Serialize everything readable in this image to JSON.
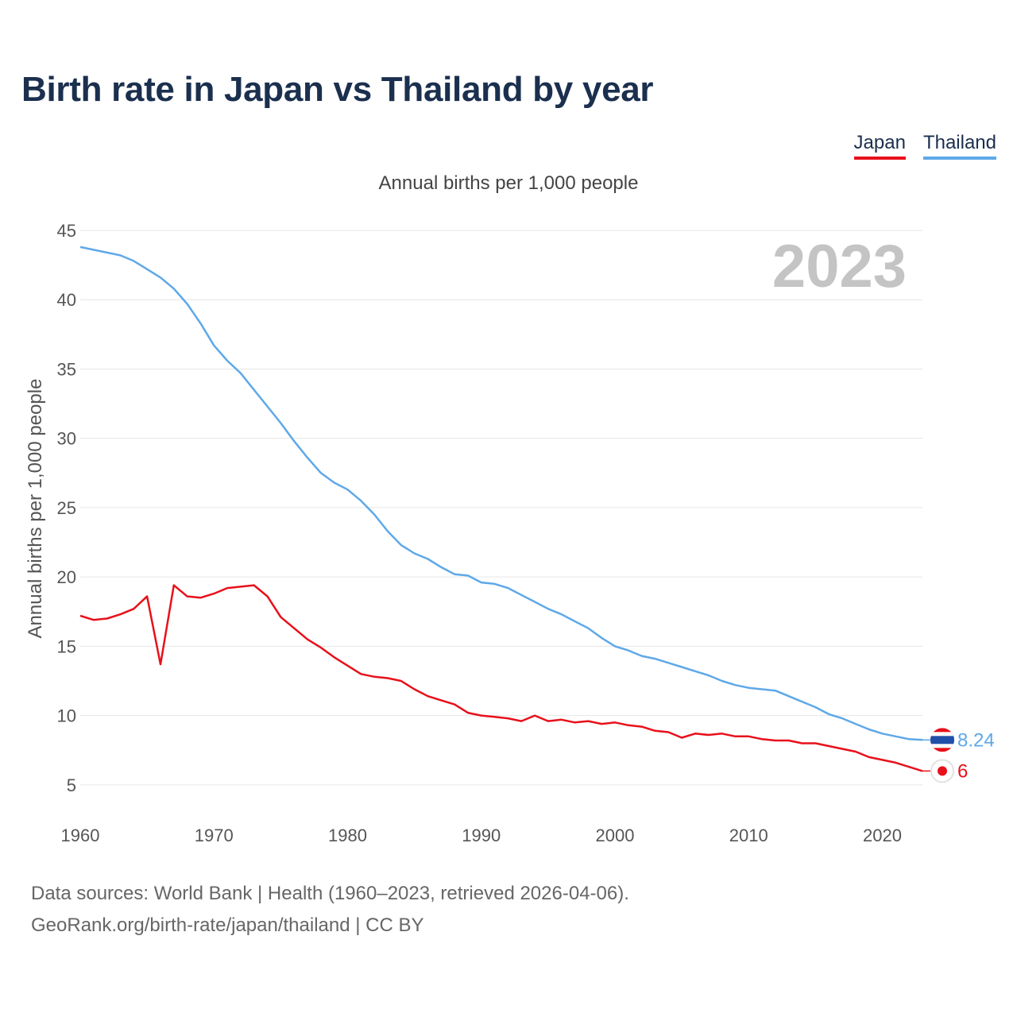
{
  "chart_data": {
    "type": "line",
    "title": "Birth rate in Japan vs Thailand by year",
    "subtitle": "Annual births per 1,000 people",
    "ylabel": "Annual births per 1,000 people",
    "xlabel": "",
    "xlim": [
      1960,
      2023
    ],
    "ylim": [
      3.5,
      45
    ],
    "yticks": [
      5,
      10,
      15,
      20,
      25,
      30,
      35,
      40,
      45
    ],
    "xticks": [
      1960,
      1970,
      1980,
      1990,
      2000,
      2010,
      2020
    ],
    "current_year": "2023",
    "legend_position": "top-right",
    "x": [
      1960,
      1961,
      1962,
      1963,
      1964,
      1965,
      1966,
      1967,
      1968,
      1969,
      1970,
      1971,
      1972,
      1973,
      1974,
      1975,
      1976,
      1977,
      1978,
      1979,
      1980,
      1981,
      1982,
      1983,
      1984,
      1985,
      1986,
      1987,
      1988,
      1989,
      1990,
      1991,
      1992,
      1993,
      1994,
      1995,
      1996,
      1997,
      1998,
      1999,
      2000,
      2001,
      2002,
      2003,
      2004,
      2005,
      2006,
      2007,
      2008,
      2009,
      2010,
      2011,
      2012,
      2013,
      2014,
      2015,
      2016,
      2017,
      2018,
      2019,
      2020,
      2021,
      2022,
      2023
    ],
    "series": [
      {
        "name": "Japan",
        "color": "#e8101a",
        "end_label": "6",
        "values": [
          17.2,
          16.9,
          17.0,
          17.3,
          17.7,
          18.6,
          13.7,
          19.4,
          18.6,
          18.5,
          18.8,
          19.2,
          19.3,
          19.4,
          18.6,
          17.1,
          16.3,
          15.5,
          14.9,
          14.2,
          13.6,
          13.0,
          12.8,
          12.7,
          12.5,
          11.9,
          11.4,
          11.1,
          10.8,
          10.2,
          10.0,
          9.9,
          9.8,
          9.6,
          10.0,
          9.6,
          9.7,
          9.5,
          9.6,
          9.4,
          9.5,
          9.3,
          9.2,
          8.9,
          8.8,
          8.4,
          8.7,
          8.6,
          8.7,
          8.5,
          8.5,
          8.3,
          8.2,
          8.2,
          8.0,
          8.0,
          7.8,
          7.6,
          7.4,
          7.0,
          6.8,
          6.6,
          6.3,
          6.0
        ]
      },
      {
        "name": "Thailand",
        "color": "#5fa8e8",
        "end_label": "8.24",
        "values": [
          43.8,
          43.6,
          43.4,
          43.2,
          42.8,
          42.2,
          41.6,
          40.8,
          39.7,
          38.3,
          36.7,
          35.6,
          34.7,
          33.5,
          32.3,
          31.1,
          29.8,
          28.6,
          27.5,
          26.8,
          26.3,
          25.5,
          24.5,
          23.3,
          22.3,
          21.7,
          21.3,
          20.7,
          20.2,
          20.1,
          19.6,
          19.5,
          19.2,
          18.7,
          18.2,
          17.7,
          17.3,
          16.8,
          16.3,
          15.6,
          15.0,
          14.7,
          14.3,
          14.1,
          13.8,
          13.5,
          13.2,
          12.9,
          12.5,
          12.2,
          12.0,
          11.9,
          11.8,
          11.4,
          11.0,
          10.6,
          10.1,
          9.8,
          9.4,
          9.0,
          8.7,
          8.5,
          8.3,
          8.24
        ]
      }
    ]
  },
  "footer": {
    "line1": "Data sources: World Bank | Health (1960–2023, retrieved 2026-04-06).",
    "line2": "GeoRank.org/birth-rate/japan/thailand | CC BY"
  }
}
